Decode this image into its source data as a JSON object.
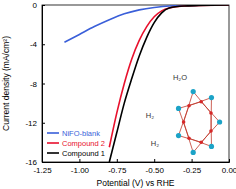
{
  "chart_data": {
    "type": "line",
    "x_label": "Potential (V) vs RHE",
    "y_label": "Current density (mA/cm²)",
    "xlim": [
      -1.25,
      0
    ],
    "xticks": [
      {
        "value": -1.25,
        "label": "-1.25"
      },
      {
        "value": -1,
        "label": "-1.00"
      },
      {
        "value": -0.75,
        "label": "-0.75"
      },
      {
        "value": -0.5,
        "label": "-0.50"
      },
      {
        "value": -0.25,
        "label": "-0.25"
      },
      {
        "value": 0,
        "label": "0.00"
      }
    ],
    "ylim": [
      -16,
      0
    ],
    "yticks": [
      -16,
      -12,
      -8,
      -4,
      0
    ],
    "legend": "lower left",
    "annotations": [
      "H₂O",
      "H₂",
      "H₂"
    ],
    "series": [
      {
        "name": "NiFO-blank",
        "color": "#3a5fd9",
        "x": [
          -1.1,
          -1.0,
          -0.9,
          -0.8,
          -0.7,
          -0.6,
          -0.5,
          -0.4,
          -0.2,
          0
        ],
        "values": [
          -3.8,
          -3.0,
          -2.2,
          -1.5,
          -0.9,
          -0.5,
          -0.25,
          -0.1,
          -0.03,
          0
        ]
      },
      {
        "name": "Compound 2",
        "color": "#e8112d",
        "x": [
          -0.8,
          -0.75,
          -0.7,
          -0.65,
          -0.6,
          -0.55,
          -0.5,
          -0.45,
          -0.4,
          -0.3,
          0
        ],
        "values": [
          -14.5,
          -11,
          -8,
          -5.5,
          -3.6,
          -2.2,
          -1.2,
          -0.6,
          -0.3,
          -0.1,
          0
        ]
      },
      {
        "name": "Compound 1",
        "color": "#000000",
        "x": [
          -0.8,
          -0.75,
          -0.7,
          -0.65,
          -0.6,
          -0.55,
          -0.5,
          -0.45,
          -0.4,
          -0.3,
          -0.2,
          0
        ],
        "values": [
          -16,
          -13,
          -10,
          -7.5,
          -5.2,
          -3.3,
          -1.8,
          -0.8,
          -0.3,
          -0.1,
          -0.05,
          0
        ]
      }
    ]
  }
}
